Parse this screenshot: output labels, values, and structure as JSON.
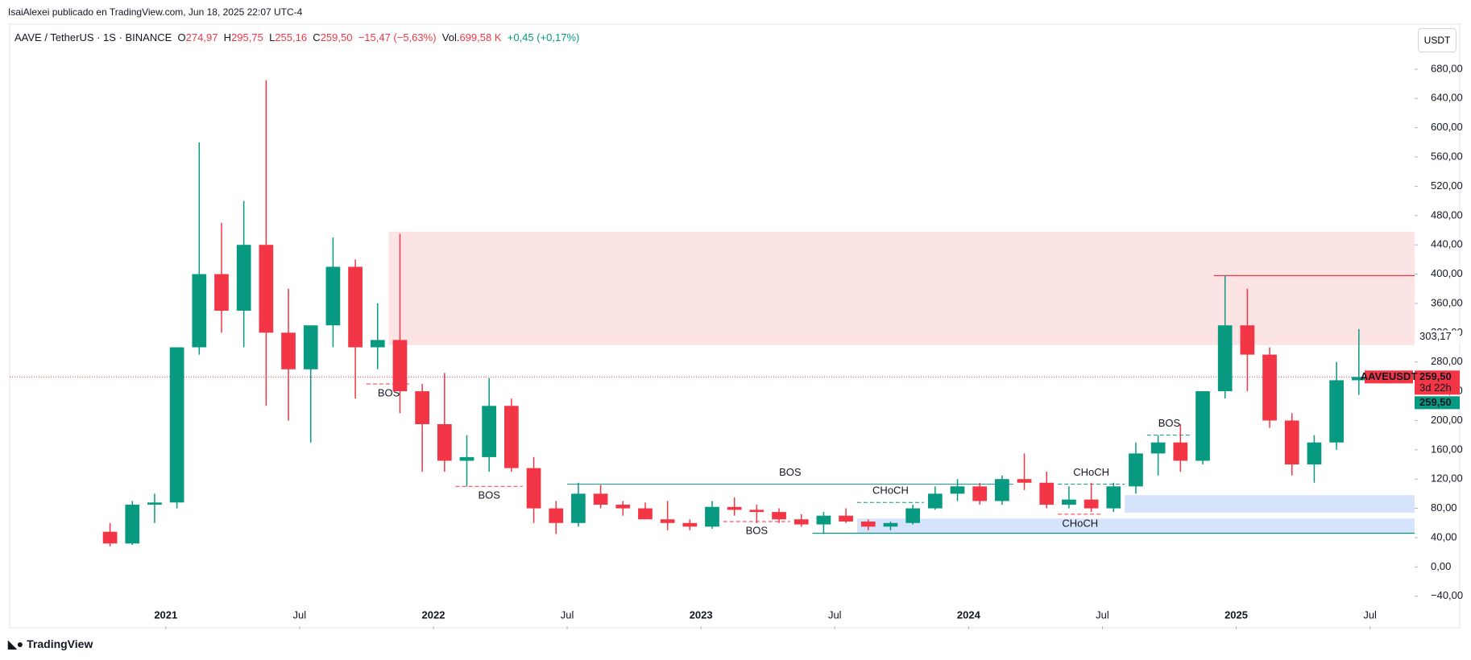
{
  "header": {
    "publisher": "IsaiAlexei publicado en TradingView.com, Jun 18, 2025 22:07 UTC-4",
    "symbol": "AAVE / TetherUS · 1S · BINANCE",
    "o_label": "O",
    "open": "274,97",
    "h_label": "H",
    "high": "295,75",
    "l_label": "L",
    "low": "255,16",
    "c_label": "C",
    "close": "259,50",
    "change": "−15,47 (−5,63%)",
    "vol_label": "Vol.",
    "volume": "699,58 K",
    "vol_change": "+0,45 (+0,17%)",
    "currency": "USDT"
  },
  "footer": {
    "brand": "TradingView"
  },
  "chart_data": {
    "type": "candlestick",
    "up_color": "#089981",
    "down_color": "#f23645",
    "x": [
      "2020-10",
      "2020-11",
      "2020-12",
      "2021-01",
      "2021-02",
      "2021-03",
      "2021-04",
      "2021-05",
      "2021-06",
      "2021-07",
      "2021-08",
      "2021-09",
      "2021-10",
      "2021-11",
      "2021-12",
      "2022-01",
      "2022-02",
      "2022-03",
      "2022-04",
      "2022-05",
      "2022-06",
      "2022-07",
      "2022-08",
      "2022-09",
      "2022-10",
      "2022-11",
      "2022-12",
      "2023-01",
      "2023-02",
      "2023-03",
      "2023-04",
      "2023-05",
      "2023-06",
      "2023-07",
      "2023-08",
      "2023-09",
      "2023-10",
      "2023-11",
      "2023-12",
      "2024-01",
      "2024-02",
      "2024-03",
      "2024-04",
      "2024-05",
      "2024-06",
      "2024-07",
      "2024-08",
      "2024-09",
      "2024-10",
      "2024-11",
      "2024-12",
      "2025-01",
      "2025-02",
      "2025-03",
      "2025-04",
      "2025-05",
      "2025-06"
    ],
    "open": [
      48,
      32,
      85,
      88,
      300,
      400,
      350,
      440,
      320,
      270,
      330,
      410,
      300,
      310,
      240,
      195,
      145,
      150,
      220,
      135,
      80,
      60,
      100,
      85,
      80,
      65,
      60,
      55,
      82,
      78,
      75,
      65,
      58,
      70,
      62,
      55,
      60,
      80,
      100,
      110,
      90,
      120,
      115,
      85,
      92,
      80,
      110,
      155,
      170,
      145,
      240,
      330,
      290,
      200,
      140,
      170,
      255
    ],
    "high": [
      60,
      90,
      100,
      300,
      580,
      470,
      500,
      665,
      380,
      330,
      450,
      420,
      360,
      455,
      250,
      265,
      180,
      258,
      230,
      150,
      90,
      115,
      112,
      90,
      88,
      90,
      65,
      90,
      95,
      85,
      80,
      72,
      75,
      80,
      65,
      62,
      85,
      110,
      120,
      115,
      125,
      155,
      130,
      110,
      115,
      115,
      170,
      180,
      195,
      240,
      398,
      380,
      300,
      210,
      180,
      280,
      325
    ],
    "low": [
      28,
      30,
      60,
      80,
      290,
      320,
      300,
      220,
      200,
      170,
      300,
      230,
      270,
      210,
      130,
      130,
      110,
      130,
      130,
      60,
      45,
      55,
      80,
      70,
      65,
      50,
      50,
      52,
      70,
      60,
      60,
      55,
      45,
      60,
      50,
      50,
      58,
      78,
      90,
      85,
      85,
      105,
      80,
      80,
      75,
      75,
      100,
      125,
      130,
      140,
      230,
      240,
      190,
      125,
      115,
      160,
      235
    ],
    "close": [
      32,
      85,
      88,
      300,
      400,
      350,
      440,
      320,
      270,
      330,
      410,
      300,
      310,
      240,
      195,
      145,
      150,
      220,
      135,
      80,
      60,
      100,
      85,
      80,
      65,
      60,
      55,
      82,
      78,
      75,
      65,
      58,
      70,
      62,
      55,
      60,
      80,
      100,
      110,
      90,
      120,
      115,
      85,
      92,
      80,
      110,
      155,
      170,
      145,
      240,
      330,
      290,
      200,
      140,
      170,
      255,
      259.5
    ],
    "xlim": [
      "2020-06",
      "2025-09"
    ],
    "xticks": [
      {
        "value": "2021-01",
        "label": "2021"
      },
      {
        "value": "2021-07",
        "label": "Jul"
      },
      {
        "value": "2022-01",
        "label": "2022"
      },
      {
        "value": "2022-07",
        "label": "Jul"
      },
      {
        "value": "2023-01",
        "label": "2023"
      },
      {
        "value": "2023-07",
        "label": "Jul"
      },
      {
        "value": "2024-01",
        "label": "2024"
      },
      {
        "value": "2024-07",
        "label": "Jul"
      },
      {
        "value": "2025-01",
        "label": "2025"
      },
      {
        "value": "2025-07",
        "label": "Jul"
      }
    ],
    "ylim": [
      -81,
      736
    ],
    "yticks": [
      {
        "value": -40,
        "label": "−40,00"
      },
      {
        "value": 0,
        "label": "0,00"
      },
      {
        "value": 40,
        "label": "40,00"
      },
      {
        "value": 80,
        "label": "80,00"
      },
      {
        "value": 120,
        "label": "120,00"
      },
      {
        "value": 160,
        "label": "160,00"
      },
      {
        "value": 200,
        "label": "200,00"
      },
      {
        "value": 240,
        "label": "240,00"
      },
      {
        "value": 280,
        "label": "280,00"
      },
      {
        "value": 320,
        "label": "320,00"
      },
      {
        "value": 360,
        "label": "360,00"
      },
      {
        "value": 400,
        "label": "400,00"
      },
      {
        "value": 440,
        "label": "440,00"
      },
      {
        "value": 480,
        "label": "480,00"
      },
      {
        "value": 520,
        "label": "520,00"
      },
      {
        "value": 560,
        "label": "560,00"
      },
      {
        "value": 600,
        "label": "600,00"
      },
      {
        "value": 640,
        "label": "640,00"
      },
      {
        "value": 680,
        "label": "680,00"
      }
    ],
    "zones": [
      {
        "x_start": "2021-11",
        "low": 303.17,
        "high": 458,
        "color": "#fce4e4"
      },
      {
        "x_start": "2024-08",
        "low": 74,
        "high": 98,
        "color": "#d6e4fb"
      },
      {
        "x_start": "2023-08",
        "low": 46,
        "high": 66,
        "color": "#d6e4fb"
      }
    ],
    "levels": [
      {
        "x_start": "2023-06",
        "value": 46,
        "color": "#089981"
      },
      {
        "x_start": "2024-12",
        "value": 398,
        "color": "#f23645"
      }
    ],
    "structures": [
      {
        "text": "BOS",
        "x_start": "2022-07",
        "x_end": "2024-03",
        "value": 113,
        "color": "#089981"
      },
      {
        "text": "BOS",
        "x_start": "2021-10",
        "x_end": "2021-12",
        "value": 250,
        "color": "#f23645"
      },
      {
        "text": "BOS",
        "x_start": "2022-02",
        "x_end": "2022-05",
        "value": 110,
        "color": "#f23645"
      },
      {
        "text": "BOS",
        "x_start": "2023-02",
        "x_end": "2023-05",
        "value": 62,
        "color": "#f23645"
      },
      {
        "text": "CHoCH",
        "x_start": "2023-08",
        "x_end": "2023-11",
        "value": 88,
        "color": "#089981"
      },
      {
        "text": "CHoCH",
        "x_start": "2024-05",
        "x_end": "2024-08",
        "value": 113,
        "color": "#089981"
      },
      {
        "text": "CHoCH",
        "x_start": "2024-05",
        "x_end": "2024-07",
        "value": 72,
        "color": "#f23645"
      },
      {
        "text": "BOS",
        "x_start": "2024-09",
        "x_end": "2024-11",
        "value": 180,
        "color": "#089981"
      }
    ],
    "price_line": {
      "value": 259.5,
      "color": "#f23645"
    },
    "price_tags": [
      {
        "value": 303.17,
        "label": "303,17",
        "color": "#ffffff",
        "text_color": "#131722"
      },
      {
        "value": 259.5,
        "label": "259,50",
        "sub": "3d 22h",
        "symbol": "AAVEUSDT",
        "color": "#f23645",
        "text_color": "#ffffff"
      },
      {
        "value": 259.5,
        "label": "259,50",
        "color": "#089981",
        "text_color": "#ffffff"
      }
    ]
  }
}
